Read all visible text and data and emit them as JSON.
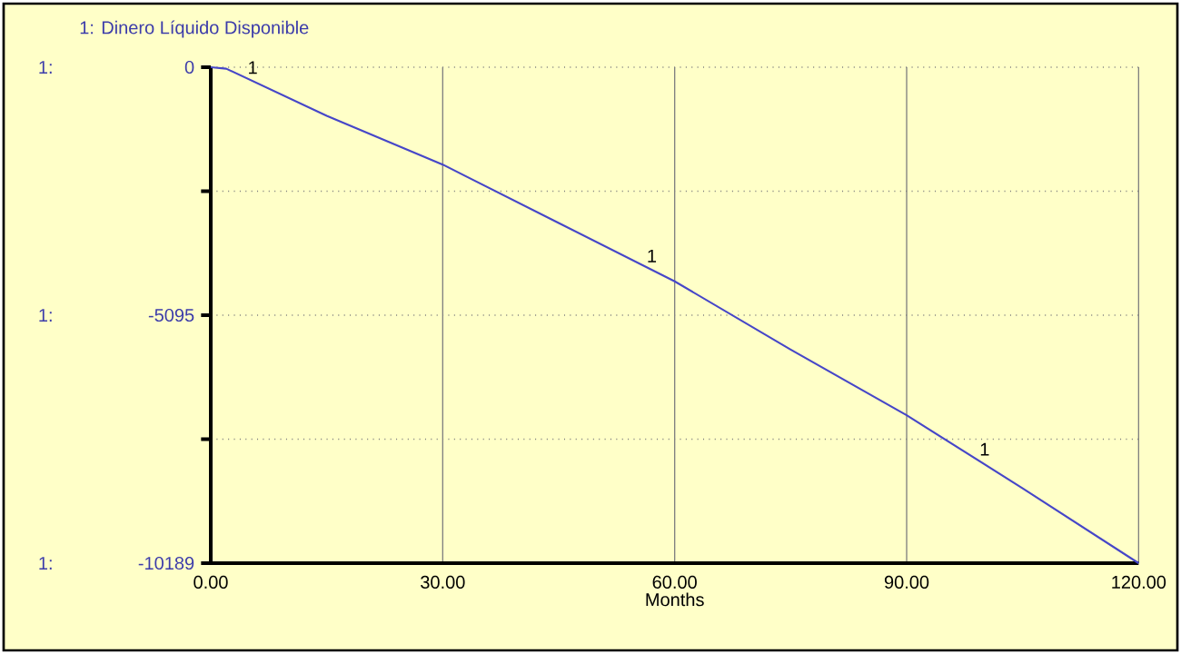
{
  "chart_data": {
    "type": "line",
    "title": "1: Dinero Líquido Disponible",
    "xlabel": "Months",
    "x": [
      0,
      2,
      15,
      30,
      45,
      60,
      75,
      90,
      105,
      120
    ],
    "series": [
      {
        "name": "1",
        "color": "#4646c8",
        "values": [
          0,
          -30,
          -1000,
          -2000,
          -3200,
          -4400,
          -5800,
          -7150,
          -8650,
          -10189
        ]
      }
    ],
    "xlim": [
      0,
      120
    ],
    "ylim": [
      -10189,
      0
    ],
    "xticks": [
      {
        "value": 0,
        "label": "0.00"
      },
      {
        "value": 30,
        "label": "30.00"
      },
      {
        "value": 60,
        "label": "60.00"
      },
      {
        "value": 90,
        "label": "90.00"
      },
      {
        "value": 120,
        "label": "120.00"
      }
    ],
    "yticks": [
      -10189,
      {
        "value": -7642,
        "label": null
      },
      -5095,
      {
        "value": -2547,
        "label": null
      },
      0
    ],
    "annotations": [
      "1:",
      "1:",
      "1:"
    ],
    "grid": true,
    "legend": false,
    "marker": "none",
    "line_style": "solid"
  }
}
